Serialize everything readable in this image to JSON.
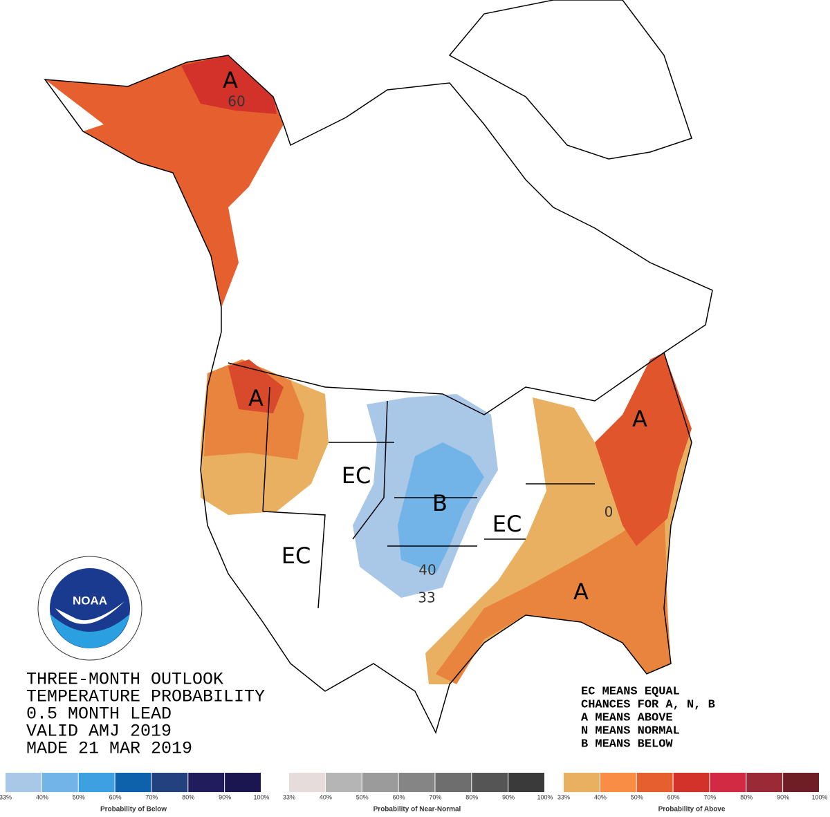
{
  "map_labels": [
    "A",
    "60",
    "A",
    "EC",
    "EC",
    "B",
    "40",
    "33",
    "EC",
    "0",
    "A",
    "A"
  ],
  "logo_text": "NOAA",
  "title_lines": [
    "THREE-MONTH OUTLOOK",
    "TEMPERATURE PROBABILITY",
    "0.5 MONTH LEAD",
    "VALID AMJ 2019",
    "MADE 21 MAR 2019"
  ],
  "legend_notes": [
    "EC MEANS EQUAL",
    "CHANCES FOR A, N, B",
    "A MEANS ABOVE",
    "N MEANS NORMAL",
    "B MEANS BELOW"
  ],
  "scales": [
    {
      "caption": "Probability of Below",
      "ticks": [
        "33%",
        "40%",
        "50%",
        "60%",
        "70%",
        "80%",
        "90%",
        "100%"
      ],
      "colors": [
        "#a9c8e8",
        "#72b3e8",
        "#3da0e0",
        "#0e62ab",
        "#23417e",
        "#211c5c",
        "#1c1650"
      ]
    },
    {
      "caption": "Probability of Near-Normal",
      "ticks": [
        "33%",
        "40%",
        "50%",
        "60%",
        "70%",
        "80%",
        "90%",
        "100%"
      ],
      "colors": [
        "#e6dcdc",
        "#b5b5b5",
        "#9b9b9b",
        "#858585",
        "#6e6e6e",
        "#555555",
        "#3a3a3a"
      ]
    },
    {
      "caption": "Probability of Above",
      "ticks": [
        "33%",
        "40%",
        "50%",
        "60%",
        "70%",
        "80%",
        "90%",
        "100%"
      ],
      "colors": [
        "#e8b060",
        "#f98d45",
        "#e5602e",
        "#d2322a",
        "#d12a42",
        "#9a2a35",
        "#6e1e24"
      ]
    }
  ]
}
